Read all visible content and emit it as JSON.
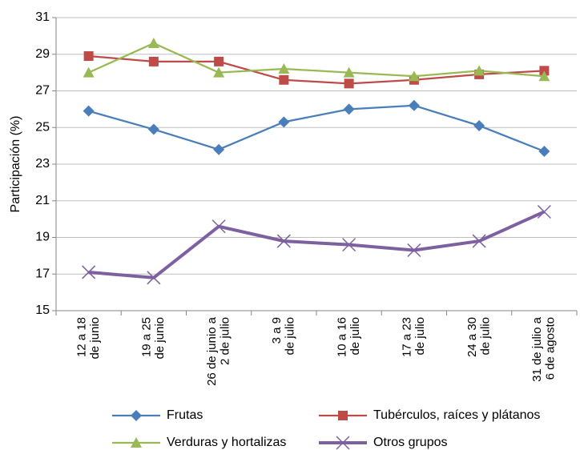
{
  "chart_data": {
    "type": "line",
    "y_label": "Participación (%)",
    "categories": [
      "12 a 18\nde junio",
      "19 a 25\nde junio",
      "26 de junio a\n2 de julio",
      "3 a 9\nde julio",
      "10 a 16\nde julio",
      "17 a 23\nde julio",
      "24 a 30\nde julio",
      "31 de julio a\n6 de agosto"
    ],
    "series": [
      {
        "name": "Frutas",
        "color": "#4a7ebb",
        "marker": "diamond",
        "values": [
          25.9,
          24.9,
          23.8,
          25.3,
          26.0,
          26.2,
          25.1,
          23.7
        ]
      },
      {
        "name": "Tubérculos, raíces y plátanos",
        "color": "#be4b48",
        "marker": "square",
        "values": [
          28.9,
          28.6,
          28.6,
          27.6,
          27.4,
          27.6,
          27.9,
          28.1
        ]
      },
      {
        "name": "Verduras y hortalizas",
        "color": "#98b954",
        "marker": "triangle",
        "values": [
          28.0,
          29.6,
          28.0,
          28.2,
          28.0,
          27.8,
          28.1,
          27.8
        ]
      },
      {
        "name": "Otros grupos",
        "color": "#7d60a0",
        "marker": "x",
        "values": [
          17.1,
          16.8,
          19.6,
          18.8,
          18.6,
          18.3,
          18.8,
          20.4
        ]
      }
    ],
    "ylim": [
      15,
      31
    ],
    "yticks": [
      15,
      17,
      19,
      21,
      23,
      25,
      27,
      29,
      31
    ],
    "grid": true
  }
}
